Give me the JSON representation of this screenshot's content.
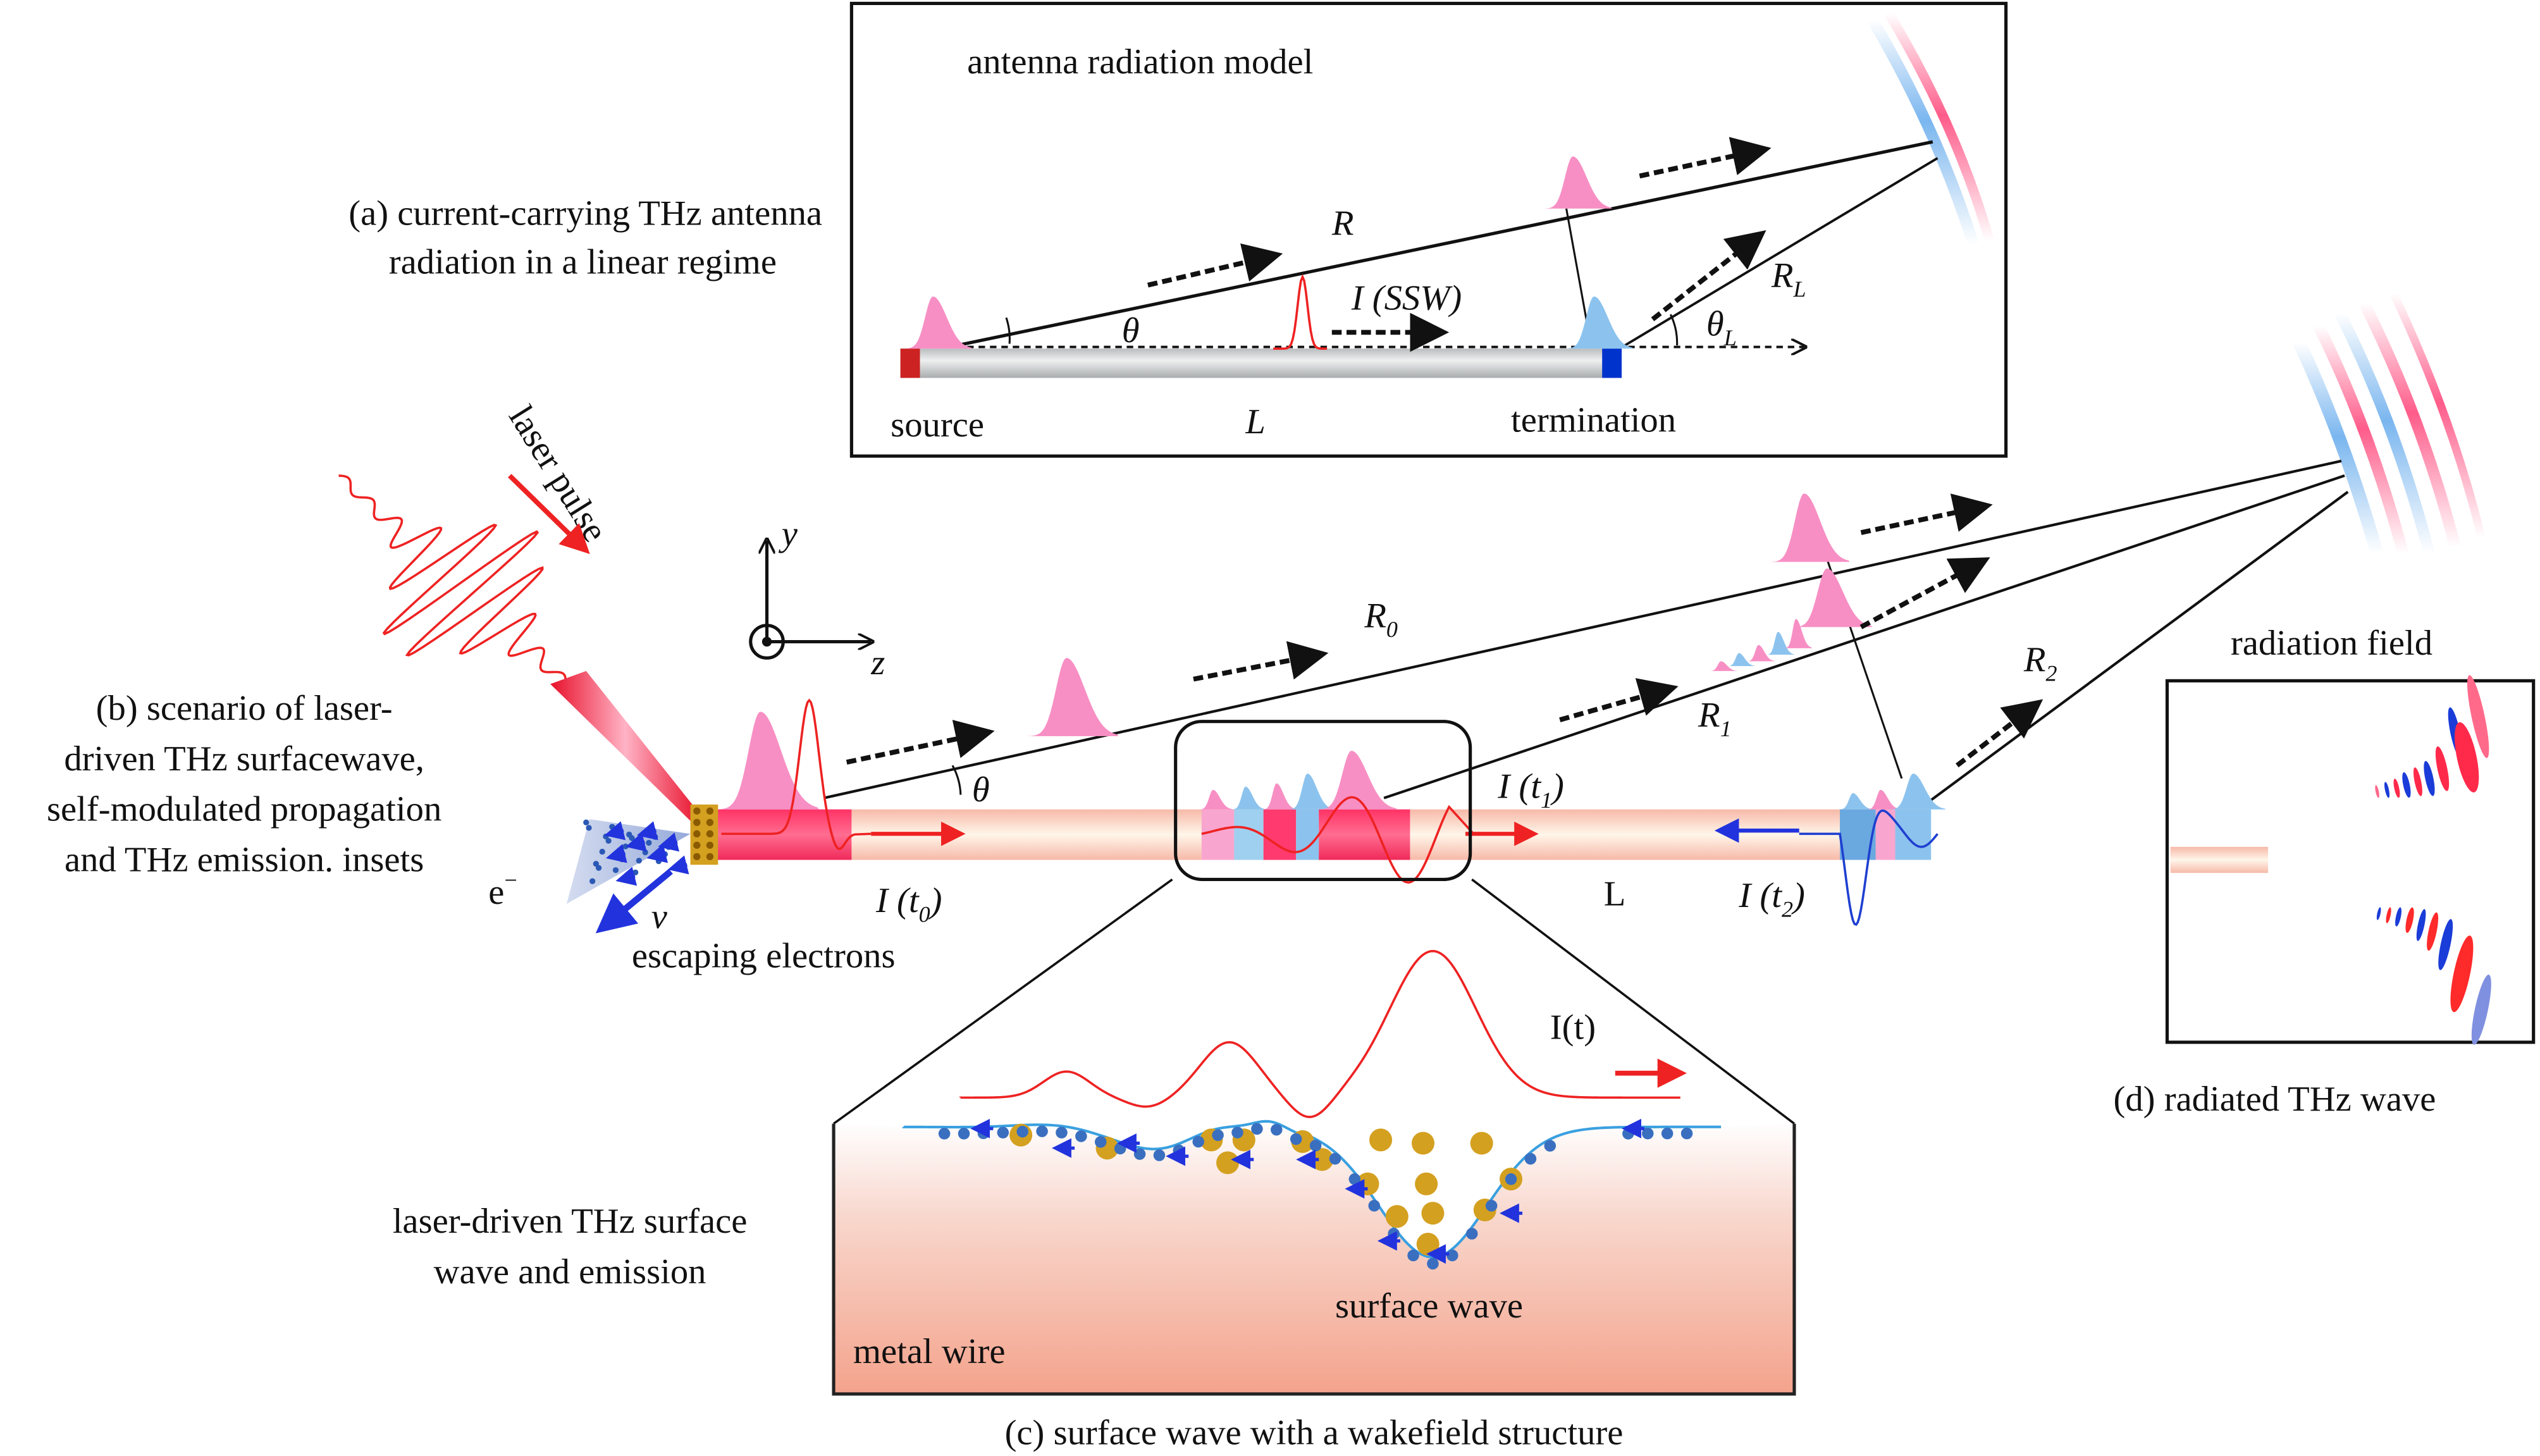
{
  "panel_a": {
    "caption_line1": "(a) current-carrying THz antenna",
    "caption_line2": "radiation in a linear regime",
    "title": "antenna radiation model",
    "label_R": "R",
    "label_theta": "θ",
    "label_current": "I (SSW)",
    "label_RL": "R",
    "label_RL_sub": "L",
    "label_thetaL": "θ",
    "label_thetaL_sub": "L",
    "label_L": "L",
    "source": "source",
    "termination": "termination"
  },
  "panel_b": {
    "caption_line1": "(b) scenario of laser-",
    "caption_line2": "driven THz surfacewave,",
    "caption_line3": "self-modulated propagation",
    "caption_line4": "and THz emission. insets",
    "laser_pulse": "laser pulse",
    "axis_y": "y",
    "axis_z": "z",
    "electron": "e",
    "electron_sup": "−",
    "velocity": "v",
    "escaping_electrons": "escaping electrons",
    "label_R0": "R",
    "label_R0_sub": "0",
    "label_R1": "R",
    "label_R1_sub": "1",
    "label_R2": "R",
    "label_R2_sub": "2",
    "label_theta": "θ",
    "label_It0": "I (t",
    "label_It0_sub": "0",
    "label_It1": "I (t",
    "label_It1_sub": "1",
    "label_It2": "I (t",
    "label_It2_sub": "2",
    "close_paren": ")",
    "label_L": "L",
    "radiation_field": "radiation field"
  },
  "panel_c": {
    "side_line1": "laser-driven THz surface",
    "side_line2": "wave and emission",
    "current_label": "I(t)",
    "surface_wave": "surface wave",
    "metal_wire": "metal wire",
    "caption": "(c) surface wave with a wakefield structure"
  },
  "panel_d": {
    "caption": "(d) radiated THz wave"
  },
  "colors": {
    "pulse_pink": "#f78fc4",
    "pulse_blue": "#8cc3ee",
    "current_red": "#ee2222",
    "wire_peach": "#f9c3b4",
    "wire_dark_pink": "#ff3366",
    "electron_blue": "#2233dd",
    "gold": "#d4a020"
  }
}
